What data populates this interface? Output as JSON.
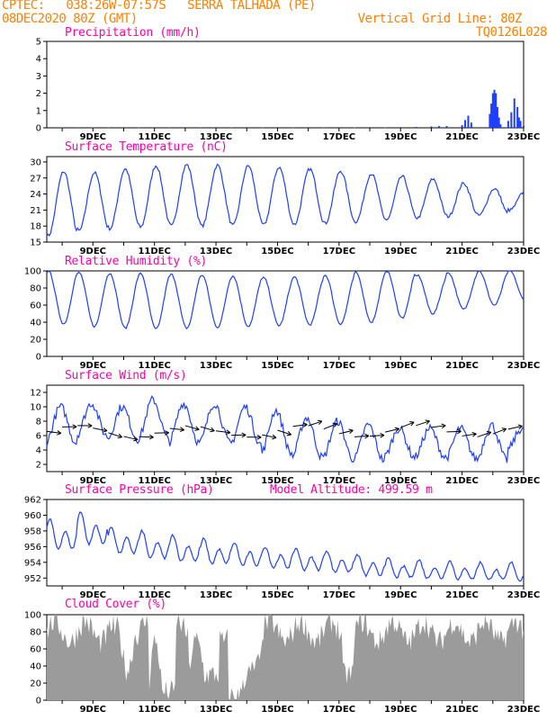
{
  "header": {
    "line1_left": "CPTEC:   038:26W-07:57S   SERRA TALHADA (PE)",
    "line2_left": "08DEC2020 80Z (GMT)",
    "line2_right": "Vertical Grid Line: 80Z",
    "line3_right": "TQ0126L028"
  },
  "date_labels": [
    "9DEC",
    "11DEC",
    "13DEC",
    "15DEC",
    "17DEC",
    "19DEC",
    "21DEC",
    "23DEC"
  ],
  "colors": {
    "header": "#ff8000",
    "title": "#ff00aa",
    "line": "#1f3fff",
    "cloud": "#9b9b9b",
    "arrow": "#000000"
  },
  "panels": {
    "precip": {
      "title": "Precipitation (mm/h)"
    },
    "temp": {
      "title": "Surface Temperature (nC)"
    },
    "humidity": {
      "title": "Relative Humidity (%)"
    },
    "wind": {
      "title": "Surface Wind (m/s)"
    },
    "pressure": {
      "title": "Surface Pressure (hPa)",
      "extra": "Model Altitude: 499.59 m"
    },
    "cloud": {
      "title": "Cloud Cover (%)"
    }
  },
  "chart_data": [
    {
      "type": "bar",
      "name": "precip",
      "title": "Precipitation (mm/h)",
      "ylim": [
        0,
        5
      ],
      "yticks": [
        0,
        1,
        2,
        3,
        4,
        5
      ],
      "x_unit": "days since 08DEC2020",
      "x": [
        0.5,
        1,
        1.5,
        2,
        3,
        4,
        5,
        6,
        7,
        8,
        9,
        10,
        11,
        12,
        12.5,
        12.75,
        13,
        13.5,
        13.6,
        13.7,
        13.8,
        14.4,
        14.45,
        14.5,
        14.55,
        14.6,
        14.65,
        14.7,
        14.75,
        15.0,
        15.1,
        15.2,
        15.3,
        15.35,
        15.4,
        15.5
      ],
      "values": [
        0.02,
        0.03,
        0.02,
        0.02,
        0.02,
        0.03,
        0.03,
        0.02,
        0.02,
        0.02,
        0.02,
        0.02,
        0.02,
        0.05,
        0.08,
        0.1,
        0.1,
        0.15,
        0.45,
        0.7,
        0.3,
        0.8,
        1.4,
        2.0,
        2.2,
        2.0,
        1.2,
        0.6,
        0.2,
        0.4,
        0.9,
        1.7,
        1.2,
        0.6,
        0.4,
        0.1
      ]
    },
    {
      "type": "line",
      "name": "temp",
      "title": "Surface Temperature (nC)",
      "ylim": [
        15,
        31
      ],
      "yticks": [
        15,
        18,
        21,
        24,
        27,
        30
      ],
      "daily_max": [
        28.2,
        28.0,
        28.7,
        29.3,
        29.5,
        29.4,
        29.3,
        29.0,
        28.7,
        28.3,
        27.8,
        27.3,
        26.8,
        26.0,
        25.0,
        24.5
      ],
      "daily_min": [
        16.2,
        17.1,
        17.5,
        17.8,
        18.0,
        18.0,
        18.1,
        18.2,
        18.3,
        18.5,
        18.8,
        19.2,
        19.5,
        19.8,
        20.0,
        21.0
      ]
    },
    {
      "type": "line",
      "name": "humidity",
      "title": "Relative Humidity (%)",
      "ylim": [
        0,
        100
      ],
      "yticks": [
        0,
        20,
        40,
        60,
        80,
        100
      ],
      "daily_max": [
        100,
        98,
        97,
        97,
        96,
        95,
        94,
        92,
        93,
        95,
        98,
        100,
        95,
        98,
        100,
        100
      ],
      "daily_min": [
        38,
        35,
        33,
        32,
        33,
        34,
        35,
        36,
        37,
        38,
        40,
        45,
        50,
        55,
        60,
        65
      ]
    },
    {
      "type": "line",
      "name": "wind",
      "title": "Surface Wind (m/s)",
      "ylim": [
        1,
        13
      ],
      "yticks": [
        2,
        4,
        6,
        8,
        10,
        12
      ],
      "daily_max": [
        10,
        10.5,
        10,
        11,
        10.5,
        10.5,
        10,
        9.5,
        8.5,
        8,
        7.5,
        7,
        7,
        7,
        7.5,
        7
      ],
      "daily_min": [
        5,
        6,
        5.5,
        5.5,
        5,
        5,
        4.8,
        3.5,
        3,
        2.8,
        2.6,
        3,
        3,
        2.8,
        2.6,
        4
      ]
    },
    {
      "type": "line",
      "name": "pressure",
      "title": "Surface Pressure (hPa)",
      "ylim": [
        951,
        962
      ],
      "yticks": [
        952,
        954,
        956,
        958,
        960,
        962
      ],
      "daily_max": [
        959.5,
        960.5,
        958.5,
        958.0,
        957.5,
        957.0,
        956.5,
        956.0,
        955.8,
        955.5,
        955.0,
        954.5,
        954.3,
        954.2,
        954.0,
        954.0
      ],
      "daily_min": [
        955.0,
        955.5,
        954.5,
        953.8,
        953.5,
        953.2,
        953.0,
        952.8,
        952.5,
        952.2,
        951.8,
        951.6,
        951.5,
        951.4,
        951.3,
        951.2
      ]
    },
    {
      "type": "area",
      "name": "cloud",
      "title": "Cloud Cover (%)",
      "ylim": [
        0,
        100
      ],
      "yticks": [
        0,
        20,
        40,
        60,
        80,
        100
      ]
    }
  ]
}
